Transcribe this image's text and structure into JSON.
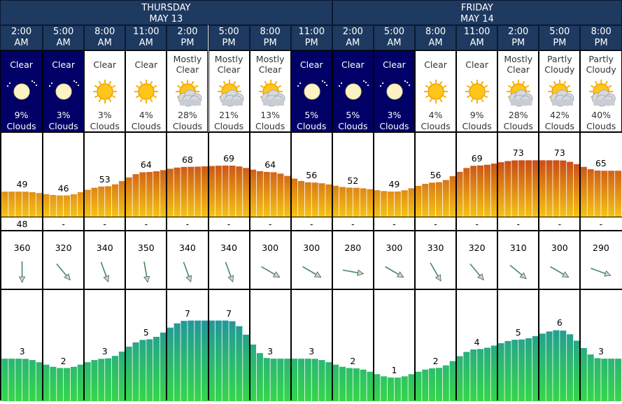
{
  "days": [
    {
      "name": "THURSDAY",
      "date": "MAY 13"
    },
    {
      "name": "FRIDAY",
      "date": "MAY 14"
    }
  ],
  "periods": [
    {
      "time": "2:00 AM",
      "cond": "Clear",
      "clouds": "9%",
      "night": true,
      "icon": "moon-icon",
      "temp": 49,
      "dew": "48",
      "wind_dir": 360,
      "wind_speed": 3
    },
    {
      "time": "5:00 AM",
      "cond": "Clear",
      "clouds": "3%",
      "night": true,
      "icon": "moon-icon",
      "temp": 46,
      "dew": "-",
      "wind_dir": 320,
      "wind_speed": 2
    },
    {
      "time": "8:00 AM",
      "cond": "Clear",
      "clouds": "3%",
      "night": false,
      "icon": "sun-icon",
      "temp": 53,
      "dew": "-",
      "wind_dir": 340,
      "wind_speed": 3
    },
    {
      "time": "11:00 AM",
      "cond": "Clear",
      "clouds": "4%",
      "night": false,
      "icon": "sun-icon",
      "temp": 64,
      "dew": "-",
      "wind_dir": 350,
      "wind_speed": 5
    },
    {
      "time": "2:00 PM",
      "cond": "Mostly Clear",
      "clouds": "28%",
      "night": false,
      "icon": "sun-cloud-icon",
      "temp": 68,
      "dew": "-",
      "wind_dir": 340,
      "wind_speed": 7
    },
    {
      "time": "5:00 PM",
      "cond": "Mostly Clear",
      "clouds": "21%",
      "night": false,
      "icon": "sun-cloud-icon",
      "temp": 69,
      "dew": "-",
      "wind_dir": 340,
      "wind_speed": 7
    },
    {
      "time": "8:00 PM",
      "cond": "Mostly Clear",
      "clouds": "13%",
      "night": false,
      "icon": "sun-cloud-icon",
      "temp": 64,
      "dew": "-",
      "wind_dir": 300,
      "wind_speed": 3
    },
    {
      "time": "11:00 PM",
      "cond": "Clear",
      "clouds": "5%",
      "night": true,
      "icon": "moon-icon",
      "temp": 56,
      "dew": "-",
      "wind_dir": 300,
      "wind_speed": 3
    },
    {
      "time": "2:00 AM",
      "cond": "Clear",
      "clouds": "5%",
      "night": true,
      "icon": "moon-icon",
      "temp": 52,
      "dew": "-",
      "wind_dir": 280,
      "wind_speed": 2
    },
    {
      "time": "5:00 AM",
      "cond": "Clear",
      "clouds": "3%",
      "night": true,
      "icon": "moon-icon",
      "temp": 49,
      "dew": "-",
      "wind_dir": 300,
      "wind_speed": 1
    },
    {
      "time": "8:00 AM",
      "cond": "Clear",
      "clouds": "4%",
      "night": false,
      "icon": "sun-icon",
      "temp": 56,
      "dew": "-",
      "wind_dir": 330,
      "wind_speed": 2
    },
    {
      "time": "11:00 AM",
      "cond": "Clear",
      "clouds": "9%",
      "night": false,
      "icon": "sun-icon",
      "temp": 69,
      "dew": "-",
      "wind_dir": 320,
      "wind_speed": 4
    },
    {
      "time": "2:00 PM",
      "cond": "Mostly Clear",
      "clouds": "28%",
      "night": false,
      "icon": "sun-cloud-icon",
      "temp": 73,
      "dew": "-",
      "wind_dir": 310,
      "wind_speed": 5
    },
    {
      "time": "5:00 PM",
      "cond": "Partly Cloudy",
      "clouds": "42%",
      "night": false,
      "icon": "sun-cloud-icon",
      "temp": 73,
      "dew": "-",
      "wind_dir": 300,
      "wind_speed": 6
    },
    {
      "time": "8:00 PM",
      "cond": "Partly Cloudy",
      "clouds": "40%",
      "night": false,
      "icon": "sun-cloud-icon",
      "temp": 65,
      "dew": "-",
      "wind_dir": 290,
      "wind_speed": 3
    }
  ],
  "clouds_suffix": "Clouds",
  "colors": {
    "header": "#1e3a60",
    "night": "#000066",
    "temp_top": "#b31217",
    "temp_bottom": "#f5c416",
    "wind_top": "#1b7fb8",
    "wind_bottom": "#35d64a",
    "arrow": "#4a8a5a"
  }
}
